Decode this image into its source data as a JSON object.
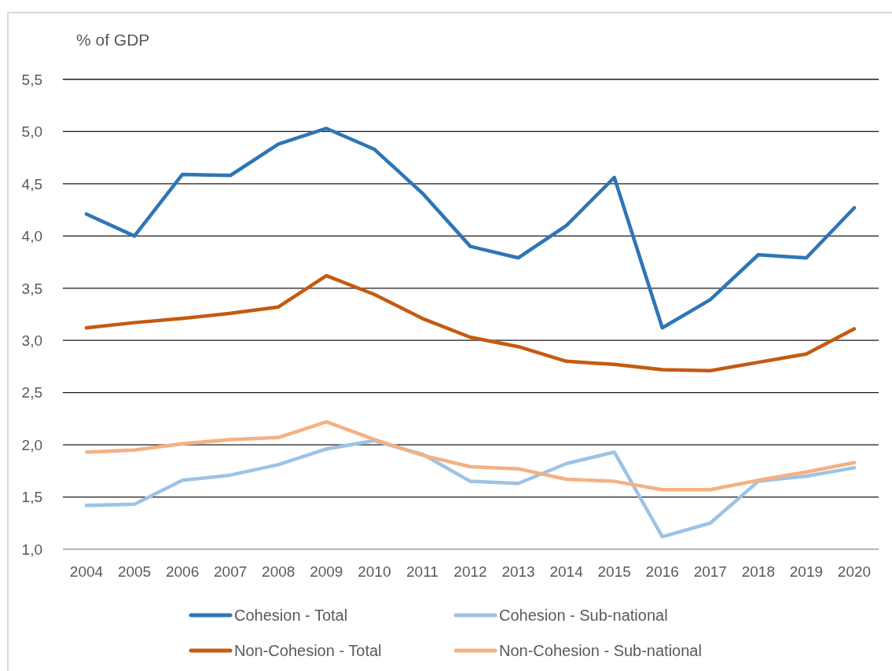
{
  "chart_data": {
    "type": "line",
    "ylabel": "% of GDP",
    "categories": [
      "2004",
      "2005",
      "2006",
      "2007",
      "2008",
      "2009",
      "2010",
      "2011",
      "2012",
      "2013",
      "2014",
      "2015",
      "2016",
      "2017",
      "2018",
      "2019",
      "2020"
    ],
    "series": [
      {
        "name": "Cohesion - Total",
        "color": "#2e75b6",
        "values": [
          4.21,
          4.0,
          4.59,
          4.58,
          4.88,
          5.03,
          4.83,
          4.41,
          3.9,
          3.79,
          4.1,
          4.56,
          3.12,
          3.39,
          3.82,
          3.79,
          4.27
        ]
      },
      {
        "name": "Cohesion - Sub-national",
        "color": "#9dc3e6",
        "values": [
          1.42,
          1.43,
          1.66,
          1.71,
          1.81,
          1.96,
          2.04,
          1.91,
          1.65,
          1.63,
          1.82,
          1.93,
          1.12,
          1.25,
          1.65,
          1.7,
          1.78
        ]
      },
      {
        "name": "Non-Cohesion - Total",
        "color": "#c55a11",
        "values": [
          3.12,
          3.17,
          3.21,
          3.26,
          3.32,
          3.62,
          3.44,
          3.21,
          3.03,
          2.94,
          2.8,
          2.77,
          2.72,
          2.71,
          2.79,
          2.87,
          3.11
        ]
      },
      {
        "name": "Non-Cohesion - Sub-national",
        "color": "#f4b183",
        "values": [
          1.93,
          1.95,
          2.01,
          2.05,
          2.07,
          2.22,
          2.05,
          1.9,
          1.79,
          1.77,
          1.67,
          1.65,
          1.57,
          1.57,
          1.66,
          1.74,
          1.83
        ]
      }
    ],
    "ylim": [
      1.0,
      5.5
    ],
    "yticks": [
      {
        "value": 1.0,
        "label": "1,0"
      },
      {
        "value": 1.5,
        "label": "1,5"
      },
      {
        "value": 2.0,
        "label": "2,0"
      },
      {
        "value": 2.5,
        "label": "2,5"
      },
      {
        "value": 3.0,
        "label": "3,0"
      },
      {
        "value": 3.5,
        "label": "3,5"
      },
      {
        "value": 4.0,
        "label": "4,0"
      },
      {
        "value": 4.5,
        "label": "4,5"
      },
      {
        "value": 5.0,
        "label": "5,0"
      },
      {
        "value": 5.5,
        "label": "5,5"
      }
    ],
    "grid": "y",
    "legend": "bottom"
  }
}
